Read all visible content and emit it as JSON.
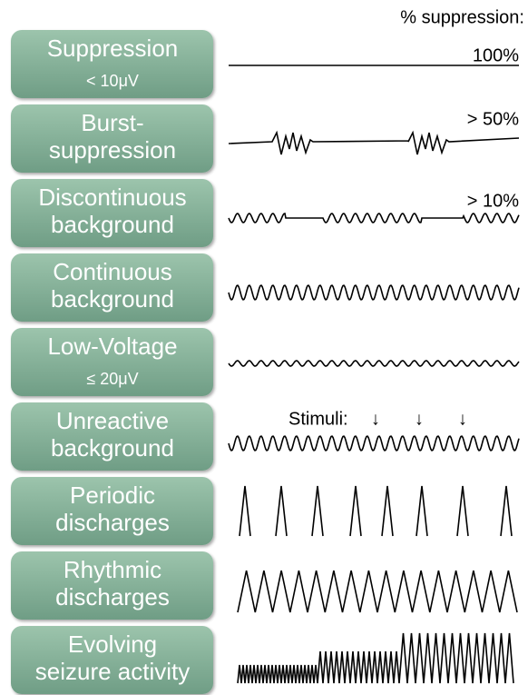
{
  "header": "% suppression:",
  "rows": [
    {
      "line1": "Suppression",
      "line2": "< 10μV",
      "note": "100%"
    },
    {
      "line1": "Burst-",
      "line2": "suppression",
      "note": "> 50%"
    },
    {
      "line1": "Discontinuous",
      "line2": "background",
      "note": "> 10%"
    },
    {
      "line1": "Continuous",
      "line2": "background"
    },
    {
      "line1": "Low-Voltage",
      "line2": "≤ 20μV"
    },
    {
      "line1": "Unreactive",
      "line2": "background"
    },
    {
      "line1": "Periodic",
      "line2": "discharges"
    },
    {
      "line1": "Rhythmic",
      "line2": "discharges"
    },
    {
      "line1": "Evolving",
      "line2": "seizure activity"
    }
  ],
  "stimuli_label": "Stimuli:",
  "stimuli_arrows": [
    "↓",
    "↓",
    "↓"
  ]
}
